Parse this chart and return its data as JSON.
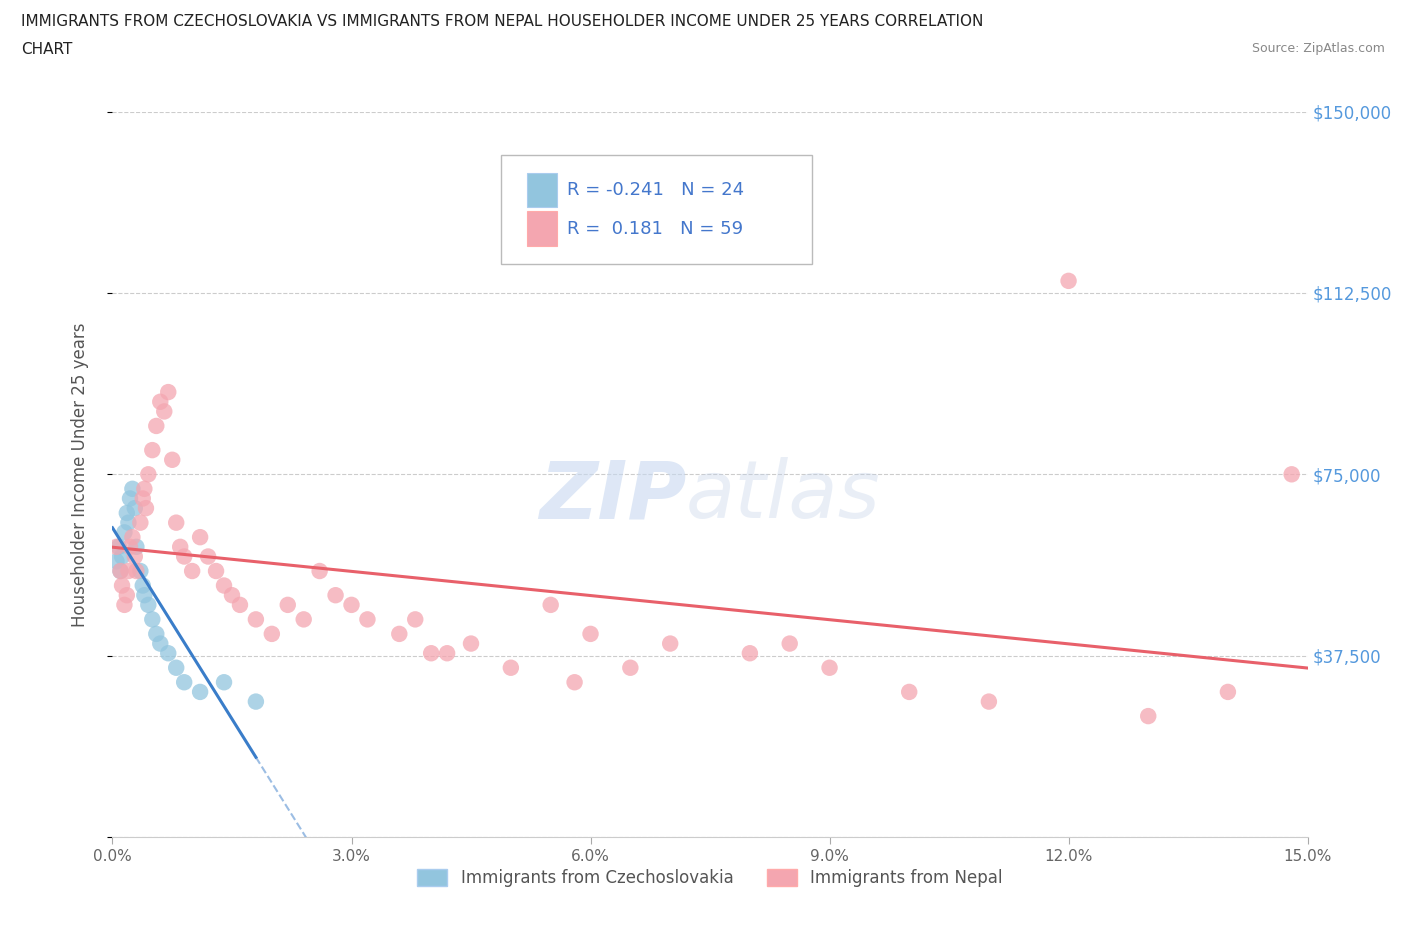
{
  "title_line1": "IMMIGRANTS FROM CZECHOSLOVAKIA VS IMMIGRANTS FROM NEPAL HOUSEHOLDER INCOME UNDER 25 YEARS CORRELATION",
  "title_line2": "CHART",
  "source_text": "Source: ZipAtlas.com",
  "ylabel": "Householder Income Under 25 years",
  "xlabel_vals": [
    0.0,
    3.0,
    6.0,
    9.0,
    12.0,
    15.0
  ],
  "ytick_vals": [
    0,
    37500,
    75000,
    112500,
    150000
  ],
  "right_ytick_labels": [
    "$150,000",
    "$112,500",
    "$75,000",
    "$37,500"
  ],
  "right_ytick_vals": [
    150000,
    112500,
    75000,
    37500
  ],
  "color_czech": "#92C5DE",
  "color_nepal": "#F4A6B0",
  "color_czech_line": "#3A7DC9",
  "color_nepal_line": "#E8606A",
  "watermark_zip": "ZIP",
  "watermark_atlas": "atlas",
  "R_czech": -0.241,
  "N_czech": 24,
  "R_nepal": 0.181,
  "N_nepal": 59,
  "czech_x": [
    0.05,
    0.08,
    0.1,
    0.12,
    0.15,
    0.18,
    0.2,
    0.22,
    0.25,
    0.28,
    0.3,
    0.35,
    0.38,
    0.4,
    0.45,
    0.5,
    0.55,
    0.6,
    0.7,
    0.8,
    0.9,
    1.1,
    1.4,
    1.8
  ],
  "czech_y": [
    57000,
    60000,
    55000,
    58000,
    63000,
    67000,
    65000,
    70000,
    72000,
    68000,
    60000,
    55000,
    52000,
    50000,
    48000,
    45000,
    42000,
    40000,
    38000,
    35000,
    32000,
    30000,
    32000,
    28000
  ],
  "nepal_x": [
    0.05,
    0.1,
    0.12,
    0.15,
    0.18,
    0.2,
    0.22,
    0.25,
    0.28,
    0.3,
    0.35,
    0.38,
    0.4,
    0.42,
    0.45,
    0.5,
    0.55,
    0.6,
    0.65,
    0.7,
    0.75,
    0.8,
    0.85,
    0.9,
    1.0,
    1.1,
    1.2,
    1.3,
    1.4,
    1.5,
    1.6,
    1.8,
    2.0,
    2.2,
    2.4,
    2.6,
    2.8,
    3.0,
    3.2,
    3.6,
    4.0,
    4.5,
    5.0,
    5.5,
    6.0,
    7.0,
    8.0,
    9.0,
    10.0,
    11.0,
    12.0,
    13.0,
    14.0,
    3.8,
    4.2,
    5.8,
    6.5,
    8.5,
    14.8
  ],
  "nepal_y": [
    60000,
    55000,
    52000,
    48000,
    50000,
    55000,
    60000,
    62000,
    58000,
    55000,
    65000,
    70000,
    72000,
    68000,
    75000,
    80000,
    85000,
    90000,
    88000,
    92000,
    78000,
    65000,
    60000,
    58000,
    55000,
    62000,
    58000,
    55000,
    52000,
    50000,
    48000,
    45000,
    42000,
    48000,
    45000,
    55000,
    50000,
    48000,
    45000,
    42000,
    38000,
    40000,
    35000,
    48000,
    42000,
    40000,
    38000,
    35000,
    30000,
    28000,
    115000,
    25000,
    30000,
    45000,
    38000,
    32000,
    35000,
    40000,
    75000
  ],
  "xmin": 0.0,
  "xmax": 15.0,
  "ymin": 0,
  "ymax": 150000
}
